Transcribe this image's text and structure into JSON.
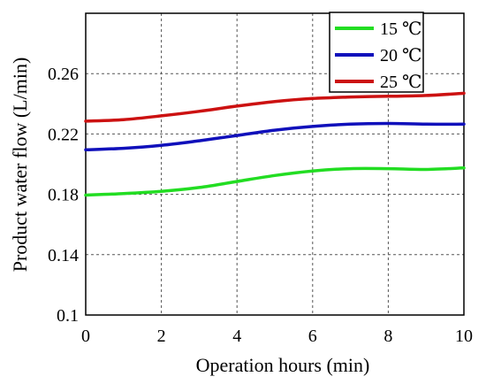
{
  "chart_data": {
    "type": "line",
    "title": "",
    "xlabel": "Operation hours (min)",
    "ylabel": "Product water flow (L/min)",
    "xlim": [
      0,
      10
    ],
    "ylim": [
      0.1,
      0.3
    ],
    "xticks": [
      0,
      2,
      4,
      6,
      8,
      10
    ],
    "xtick_labels": [
      "0",
      "2",
      "4",
      "6",
      "8",
      "10"
    ],
    "yticks": [
      0.1,
      0.14,
      0.18,
      0.22,
      0.26
    ],
    "ytick_labels": [
      "0.1",
      "0.14",
      "0.18",
      "0.22",
      "0.26"
    ],
    "grid": true,
    "legend_position": "top-right",
    "x": [
      0,
      1,
      2,
      3,
      4,
      5,
      6,
      7,
      8,
      9,
      10
    ],
    "series": [
      {
        "name": "15 ℃",
        "color": "#22dd22",
        "values": [
          0.1795,
          0.1805,
          0.182,
          0.1845,
          0.1885,
          0.1925,
          0.1955,
          0.197,
          0.197,
          0.1965,
          0.1975
        ]
      },
      {
        "name": "20 ℃",
        "color": "#1010bb",
        "values": [
          0.2095,
          0.2105,
          0.2125,
          0.2155,
          0.219,
          0.2225,
          0.225,
          0.2265,
          0.227,
          0.2265,
          0.2265
        ]
      },
      {
        "name": "25 ℃",
        "color": "#cc1111",
        "values": [
          0.2285,
          0.2295,
          0.232,
          0.235,
          0.2385,
          0.2415,
          0.2435,
          0.2445,
          0.245,
          0.2455,
          0.247
        ]
      }
    ]
  }
}
